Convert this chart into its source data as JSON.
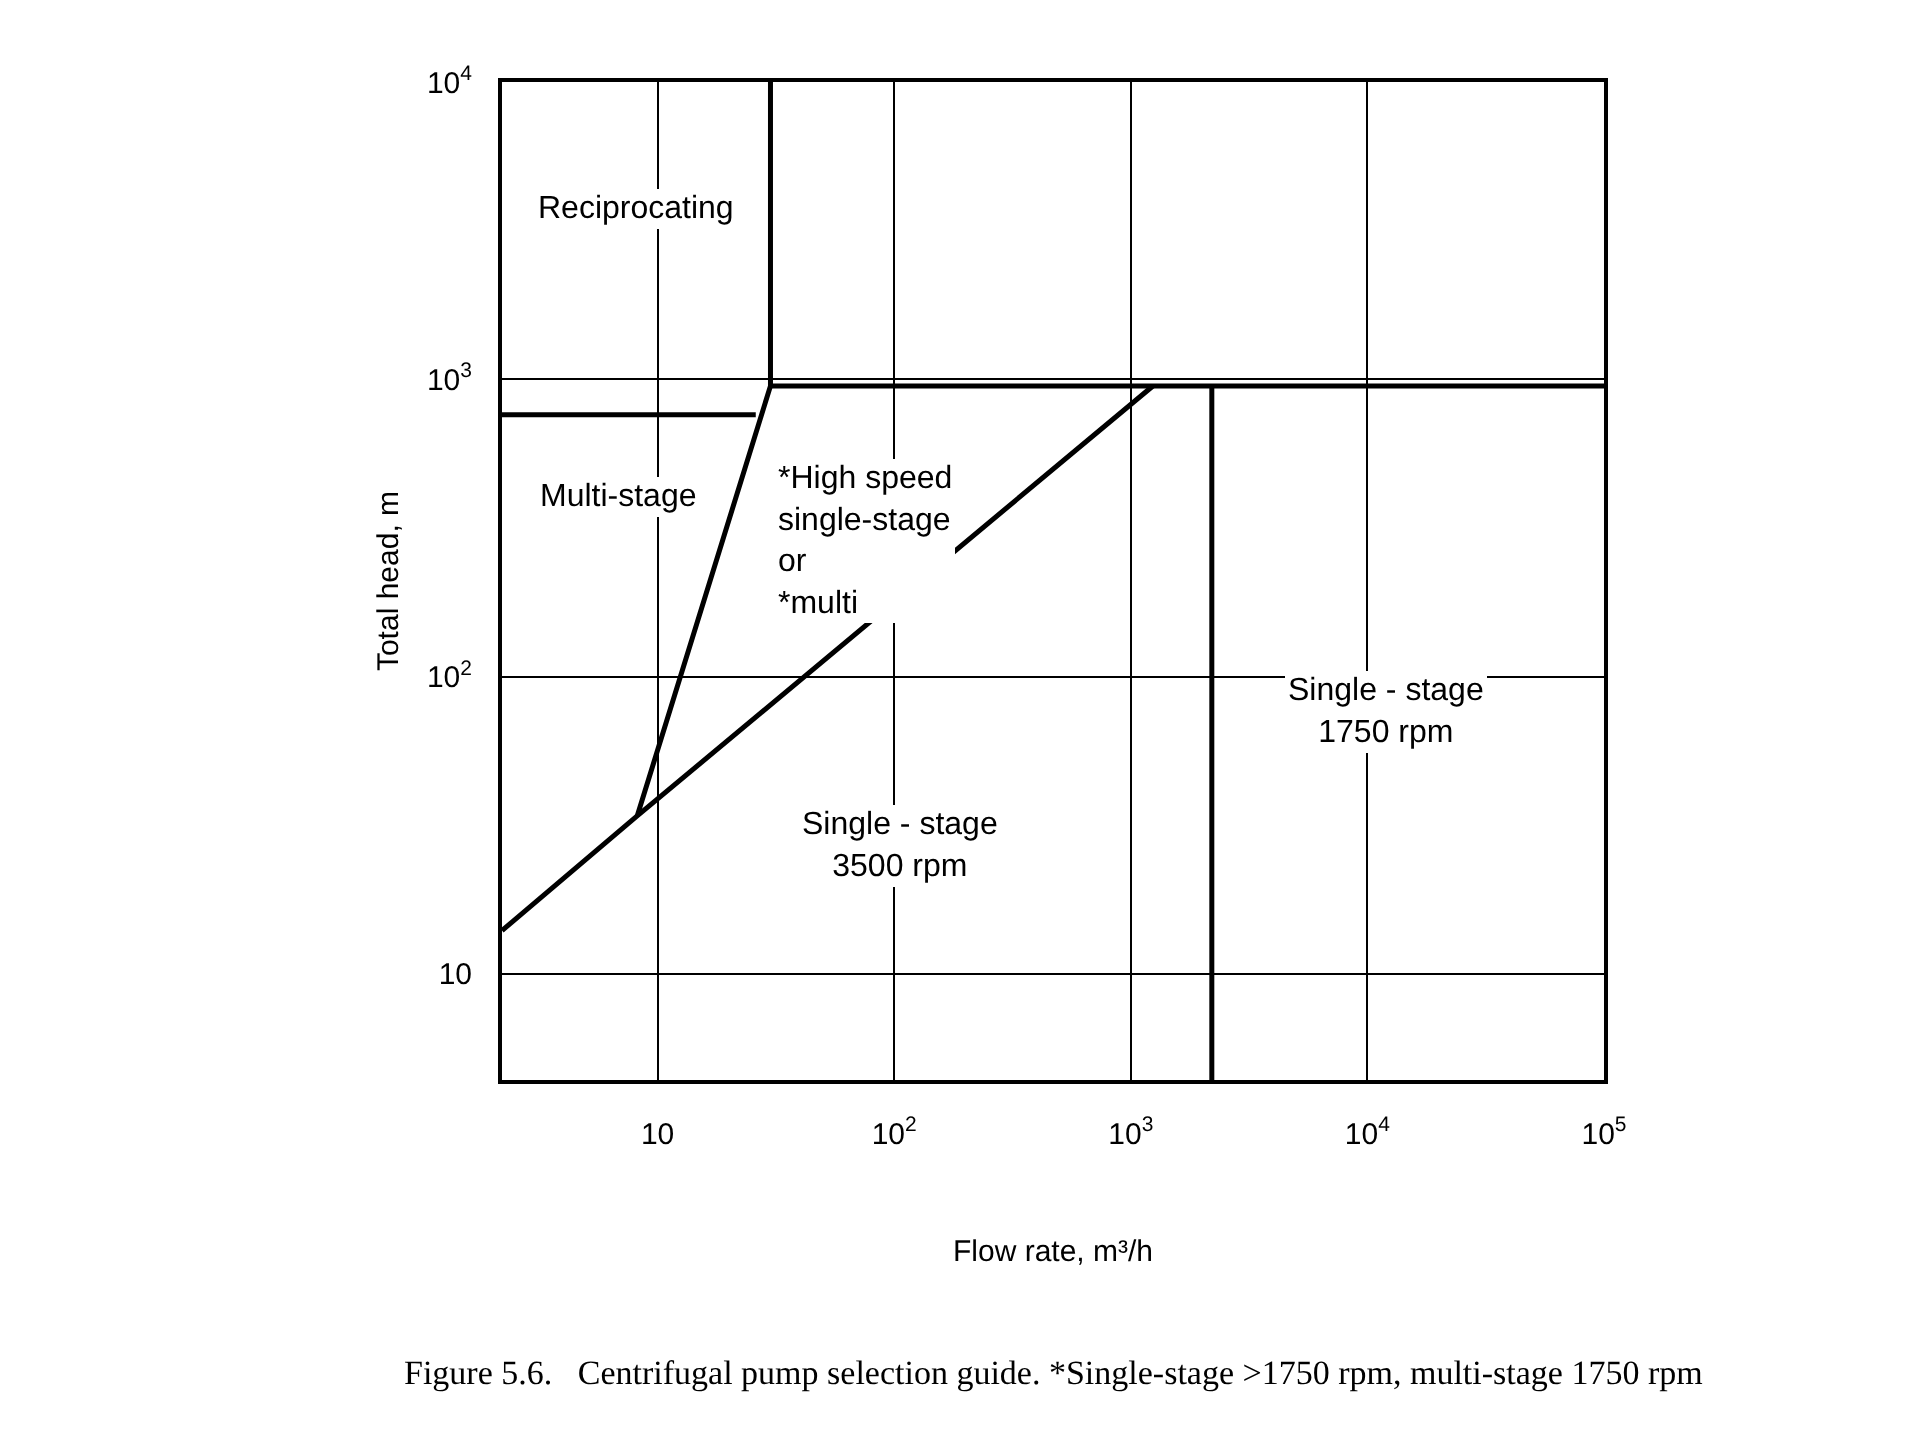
{
  "chart_data": {
    "type": "line",
    "xlabel": "Flow rate, m³/h",
    "ylabel": "Total head, m",
    "log": "xy",
    "xlim": [
      2.2,
      100000
    ],
    "ylim": [
      4.4,
      10000
    ],
    "xticks": [
      10,
      {
        "value": 100,
        "label": "10$^{2}$"
      },
      {
        "value": 1000,
        "label": "10$^{3}$"
      },
      {
        "value": 10000,
        "label": "10$^{4}$"
      },
      {
        "value": 100000,
        "label": "10$^{5}$"
      }
    ],
    "yticks": [
      10,
      {
        "value": 100,
        "label": "10$^{2}$"
      },
      {
        "value": 1000,
        "label": "10$^{3}$"
      },
      {
        "value": 10000,
        "label": "10$^{4}$"
      }
    ],
    "grid": true,
    "legend": false,
    "marker": "none",
    "line_style": "solid",
    "series": [
      {
        "color": "#000000",
        "x": [
          30,
          30,
          8.2
        ],
        "values": [
          10000,
          950,
          34
        ]
      },
      {
        "color": "#000000",
        "x": [
          30,
          100000
        ],
        "values": [
          950,
          950
        ]
      },
      {
        "color": "#000000",
        "x": [
          2.2,
          26
        ],
        "values": [
          760,
          760
        ]
      },
      {
        "color": "#000000",
        "x": [
          2.2,
          8.2,
          1240
        ],
        "values": [
          14,
          34,
          950
        ]
      },
      {
        "color": "#000000",
        "x": [
          2200,
          2200
        ],
        "values": [
          950,
          4.4
        ]
      }
    ],
    "annotations": [
      "Reciprocating",
      "Multi-stage",
      "*High speed\nsingle-stage\nor\n*multi",
      "Single - stage\n3500 rpm",
      "Single - stage\n1750 rpm",
      "Figure 5.6.   Centrifugal pump selection guide. *Single-stage >1750 rpm, multi-stage 1750 rpm"
    ]
  }
}
